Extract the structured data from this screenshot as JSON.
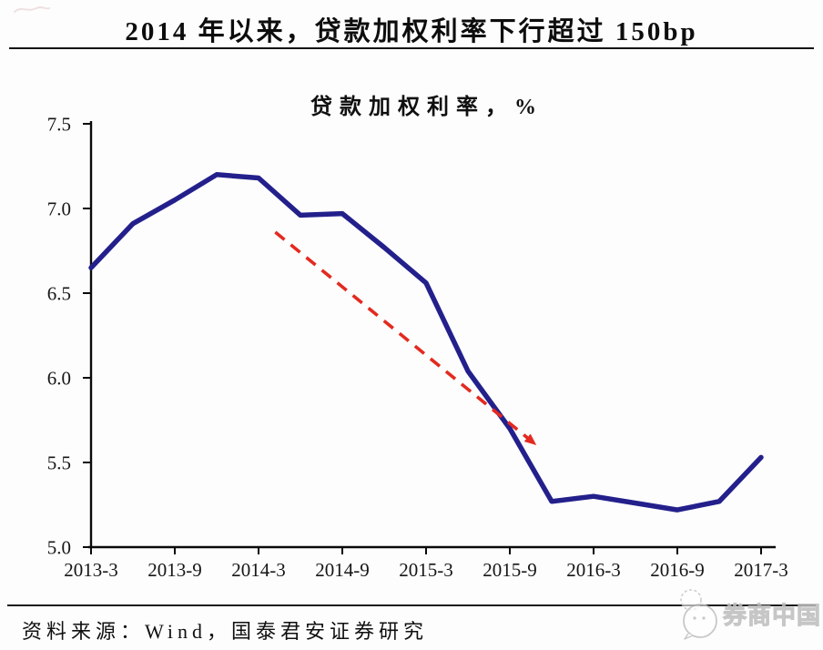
{
  "header": {
    "title": "2014 年以来，贷款加权利率下行超过 150bp"
  },
  "chart_data": {
    "type": "line",
    "title": "贷款加权利率，%",
    "x": [
      "2013-3",
      "2013-6",
      "2013-9",
      "2013-12",
      "2014-3",
      "2014-6",
      "2014-9",
      "2014-12",
      "2015-3",
      "2015-6",
      "2015-9",
      "2015-12",
      "2016-3",
      "2016-6",
      "2016-9",
      "2016-12",
      "2017-3"
    ],
    "series": [
      {
        "name": "贷款加权利率",
        "color": "#23208c",
        "values": [
          6.65,
          6.91,
          7.05,
          7.2,
          7.18,
          6.96,
          6.97,
          6.77,
          6.56,
          6.04,
          5.7,
          5.27,
          5.3,
          5.26,
          5.22,
          5.27,
          5.53
        ]
      }
    ],
    "x_tick_labels": [
      "2013-3",
      "2013-9",
      "2014-3",
      "2014-9",
      "2015-3",
      "2015-9",
      "2016-3",
      "2016-9",
      "2017-3"
    ],
    "y_tick_labels": [
      "5.0",
      "5.5",
      "6.0",
      "6.5",
      "7.0",
      "7.5"
    ],
    "ylim": [
      5.0,
      7.5
    ],
    "grid": false,
    "legend": "none",
    "annotation": {
      "type": "trend-arrow",
      "style": "dashed",
      "color": "#e32a20",
      "from_idx": 4.4,
      "from_val": 6.86,
      "to_idx": 10.45,
      "to_val": 5.64
    }
  },
  "footer": {
    "source_label": "资料来源：Wind，国泰君安证券研究",
    "watermark": "券商中国"
  }
}
